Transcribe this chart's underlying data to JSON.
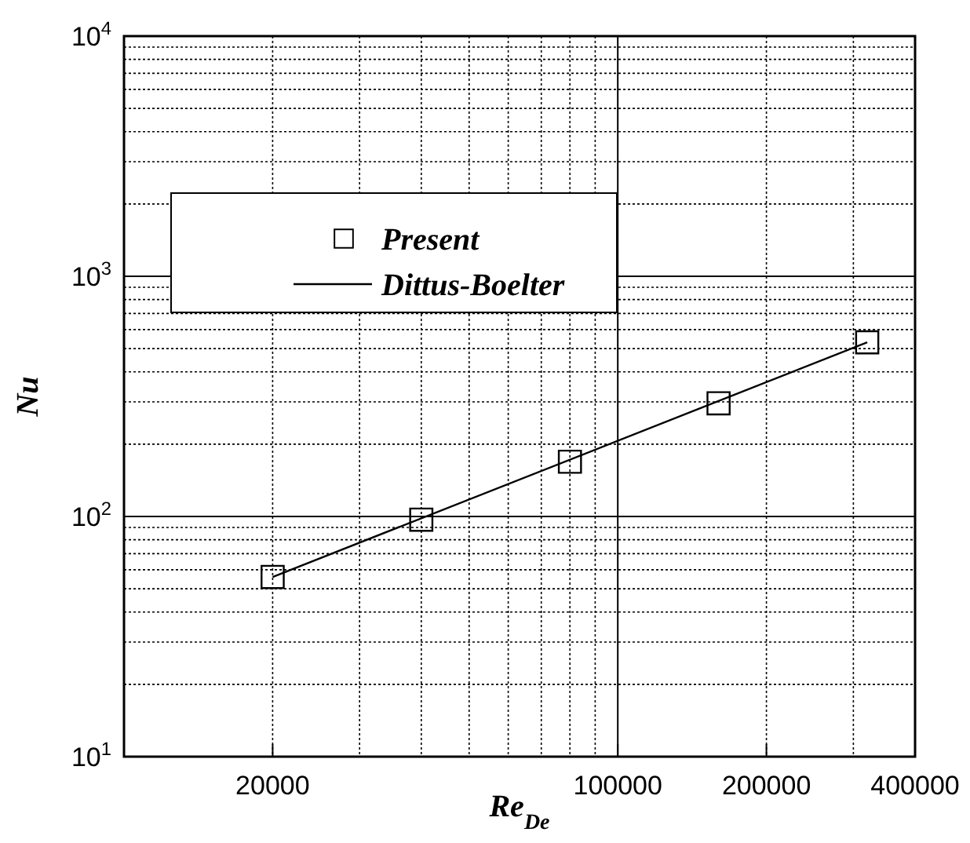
{
  "chart_data": {
    "type": "scatter",
    "xlabel": "Re$_{De}$",
    "ylabel": "Nu",
    "log": "xy",
    "grid": true,
    "legend": "top left",
    "xlim": [
      10000,
      400000
    ],
    "xticks": [
      20000,
      100000,
      200000,
      400000
    ],
    "ylim": [
      10,
      10000
    ],
    "yticks": [
      {
        "value": 10,
        "label": "10$^{1}$"
      },
      {
        "value": 100,
        "label": "10$^{2}$"
      },
      {
        "value": 1000,
        "label": "10$^{3}$"
      },
      {
        "value": 10000,
        "label": "10$^{4}$"
      }
    ],
    "series": [
      {
        "name": "Present",
        "type": "scatter",
        "marker": "square",
        "color": "#000000",
        "x": [
          20000,
          40000,
          80000,
          160000,
          320000
        ],
        "values": [
          56,
          97,
          169,
          296,
          531
        ]
      },
      {
        "name": "Dittus-Boelter",
        "type": "line",
        "marker": "none",
        "line_style": "solid",
        "color": "#000000",
        "x": [
          20000,
          320000
        ],
        "values": [
          56,
          531
        ]
      }
    ]
  }
}
